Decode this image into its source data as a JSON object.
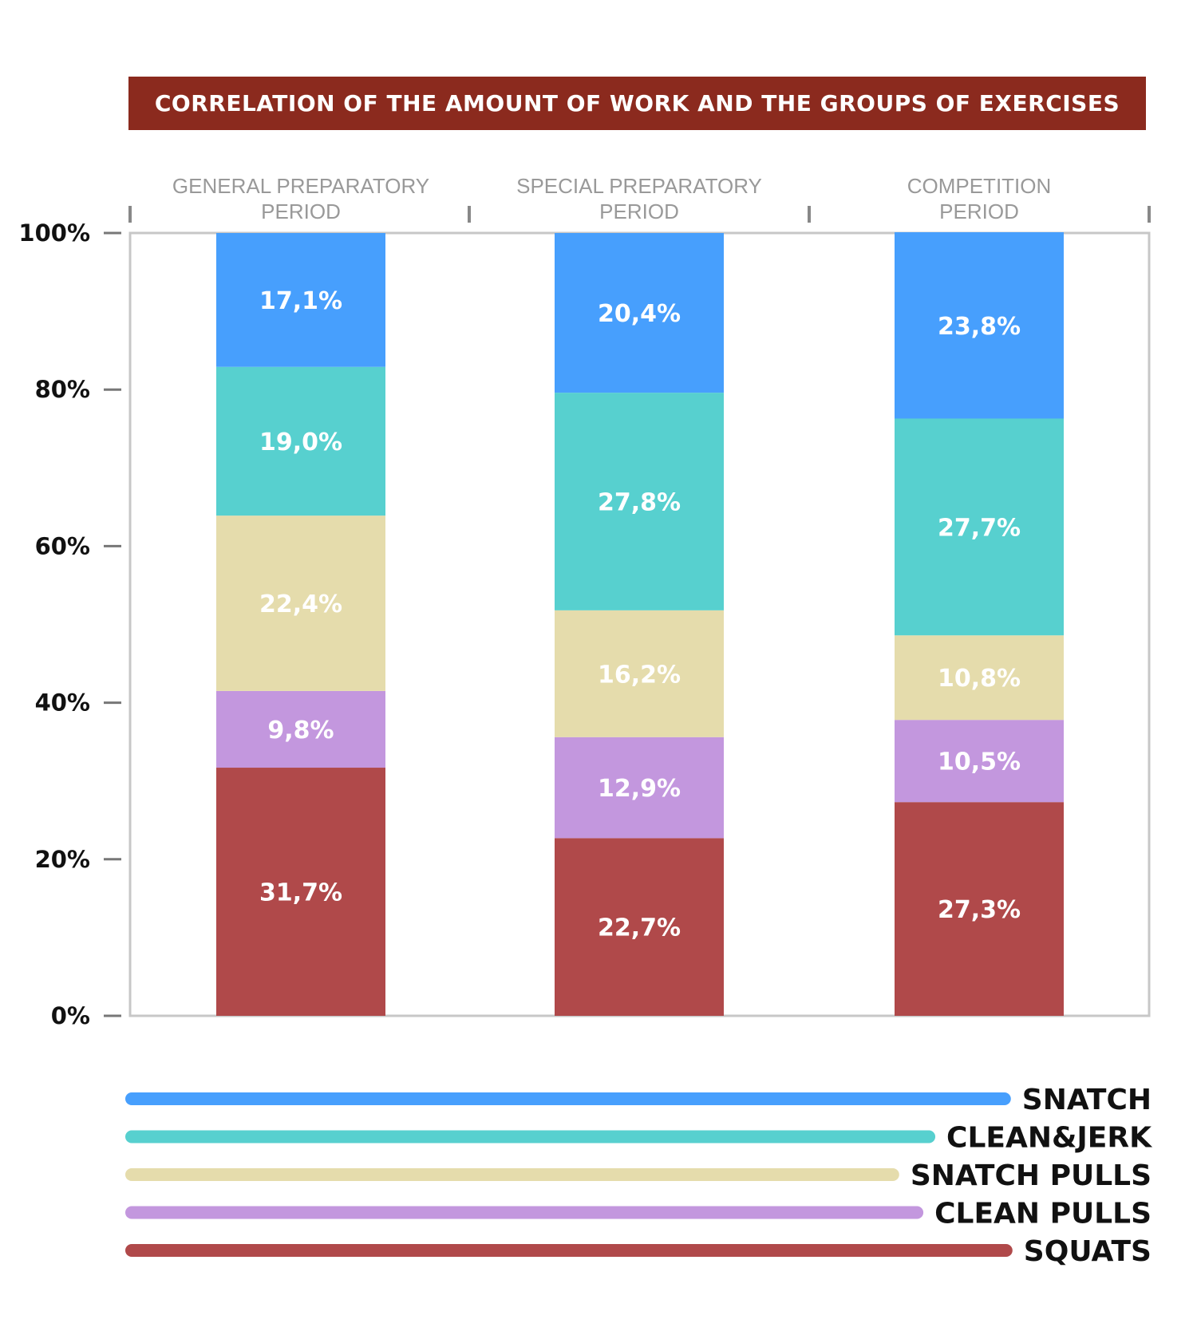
{
  "chart_data": {
    "type": "bar",
    "stacked": true,
    "title": "CORRELATION OF THE AMOUNT OF WORK AND THE GROUPS OF EXERCISES",
    "categories": [
      [
        "GENERAL PREPARATORY",
        "PERIOD"
      ],
      [
        "SPECIAL PREPARATORY",
        "PERIOD"
      ],
      [
        "COMPETITION",
        "PERIOD"
      ]
    ],
    "y_ticks": [
      "0%",
      "20%",
      "40%",
      "60%",
      "80%",
      "100%"
    ],
    "ylim": [
      0,
      100
    ],
    "series": [
      {
        "name": "SQUATS",
        "color": "#b0494a",
        "values": [
          31.7,
          22.7,
          27.3
        ],
        "labels": [
          "31,7%",
          "22,7%",
          "27,3%"
        ]
      },
      {
        "name": "CLEAN PULLS",
        "color": "#c397de",
        "values": [
          9.8,
          12.9,
          10.5
        ],
        "labels": [
          "9,8%",
          "12,9%",
          "10,5%"
        ]
      },
      {
        "name": "SNATCH PULLS",
        "color": "#e5dcac",
        "values": [
          22.4,
          16.2,
          10.8
        ],
        "labels": [
          "22,4%",
          "16,2%",
          "10,8%"
        ]
      },
      {
        "name": "CLEAN&JERK",
        "color": "#57d0cf",
        "values": [
          19.0,
          27.8,
          27.7
        ],
        "labels": [
          "19,0%",
          "27,8%",
          "27,7%"
        ]
      },
      {
        "name": "SNATCH",
        "color": "#479ffd",
        "values": [
          17.1,
          20.4,
          23.8
        ],
        "labels": [
          "17,1%",
          "20,4%",
          "23,8%"
        ]
      }
    ],
    "legend": {
      "position": "bottom",
      "order": [
        "SNATCH",
        "CLEAN&JERK",
        "SNATCH PULLS",
        "CLEAN PULLS",
        "SQUATS"
      ]
    },
    "grid": false
  }
}
